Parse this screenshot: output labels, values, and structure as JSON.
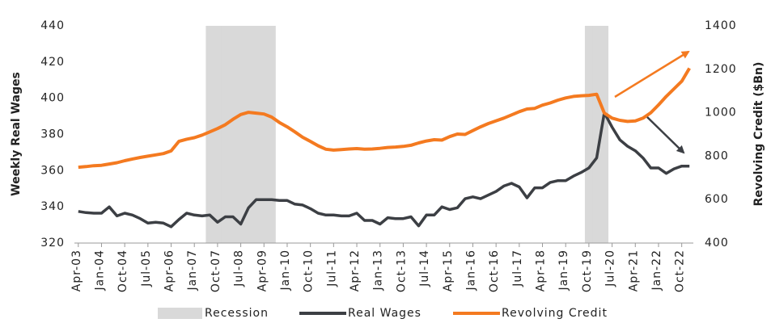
{
  "chart_data": {
    "type": "line",
    "y_label": "Weekly Real Wages",
    "y2_label": "Revolving Credit ($Bn)",
    "ylim": [
      320,
      440
    ],
    "yticks": [
      320,
      340,
      360,
      380,
      400,
      420,
      440
    ],
    "y2lim": [
      400,
      1400
    ],
    "y2ticks": [
      400,
      600,
      800,
      1000,
      1200,
      1400
    ],
    "categories": [
      "Apr-03",
      null,
      null,
      "Jan-04",
      null,
      null,
      "Oct-04",
      null,
      null,
      "Jul-05",
      null,
      null,
      "Apr-06",
      null,
      null,
      "Jan-07",
      null,
      null,
      "Oct-07",
      null,
      null,
      "Jul-08",
      null,
      null,
      "Apr-09",
      null,
      null,
      "Jan-10",
      null,
      null,
      "Oct-10",
      null,
      null,
      "Jul-11",
      null,
      null,
      "Apr-12",
      null,
      null,
      "Jan-13",
      null,
      null,
      "Oct-13",
      null,
      null,
      "Jul-14",
      null,
      null,
      "Apr-15",
      null,
      null,
      "Jan-16",
      null,
      null,
      "Oct-16",
      null,
      null,
      "Jul-17",
      null,
      null,
      "Apr-18",
      null,
      null,
      "Jan-19",
      null,
      null,
      "Oct-19",
      null,
      null,
      "Jul-20",
      null,
      null,
      "Apr-21",
      null,
      null,
      "Jan-22",
      null,
      null,
      "Oct-22",
      null
    ],
    "series": [
      {
        "name": "Recession",
        "color": "#d9d9d9",
        "kind": "band",
        "values": [
          null,
          null,
          null,
          null,
          null,
          null,
          null,
          null,
          null,
          null,
          null,
          null,
          null,
          null,
          null,
          null,
          null,
          440,
          440,
          440,
          440,
          440,
          440,
          440,
          440,
          440,
          null,
          null,
          null,
          null,
          null,
          null,
          null,
          null,
          null,
          null,
          null,
          null,
          null,
          null,
          null,
          null,
          null,
          null,
          null,
          null,
          null,
          null,
          null,
          null,
          null,
          null,
          null,
          null,
          null,
          null,
          null,
          null,
          null,
          null,
          null,
          null,
          null,
          null,
          null,
          null,
          440,
          440,
          440,
          null,
          null,
          null,
          null,
          null,
          null,
          null,
          null,
          null,
          null,
          null
        ]
      },
      {
        "name": "Real Wages",
        "color": "#3c3f44",
        "kind": "line",
        "values": [
          337.5,
          336.8,
          336.5,
          336.5,
          340,
          335,
          336.5,
          335.5,
          333.5,
          331,
          331.5,
          331,
          329,
          333,
          336.5,
          335.5,
          335,
          335.5,
          331.5,
          334.5,
          334.5,
          330.5,
          339.5,
          344,
          344,
          344,
          343.5,
          343.5,
          341.5,
          341,
          339,
          336.5,
          335.5,
          335.5,
          335,
          335,
          336.5,
          332.5,
          332.5,
          330.5,
          334,
          333.5,
          333.5,
          334.5,
          329.5,
          335.5,
          335.5,
          340,
          338.5,
          339.5,
          344.5,
          345.5,
          344.5,
          346.5,
          348.5,
          351.5,
          353,
          351,
          345,
          350.5,
          350.5,
          353.5,
          354.5,
          354.5,
          357,
          359,
          361.5,
          367,
          392,
          384,
          377,
          373.5,
          371,
          367,
          361.5,
          361.5,
          358.5,
          361,
          362.5,
          362.5
        ]
      },
      {
        "name": "Revolving Credit",
        "color": "#f47a20",
        "kind": "line",
        "axis": "y2",
        "values": [
          749,
          752,
          756,
          758,
          764,
          770,
          779,
          787,
          794,
          800,
          806,
          812,
          824,
          868,
          878,
          885,
          897,
          912,
          927,
          945,
          970,
          992,
          1002,
          998,
          994,
          980,
          955,
          935,
          912,
          887,
          868,
          848,
          832,
          828,
          830,
          833,
          835,
          832,
          833,
          836,
          840,
          842,
          845,
          850,
          861,
          870,
          876,
          874,
          890,
          902,
          900,
          918,
          935,
          950,
          963,
          975,
          990,
          1005,
          1017,
          1020,
          1035,
          1045,
          1058,
          1068,
          1075,
          1078,
          1080,
          1085,
          998,
          975,
          965,
          960,
          962,
          975,
          1000,
          1036,
          1075,
          1110,
          1145,
          1205
        ]
      }
    ]
  }
}
